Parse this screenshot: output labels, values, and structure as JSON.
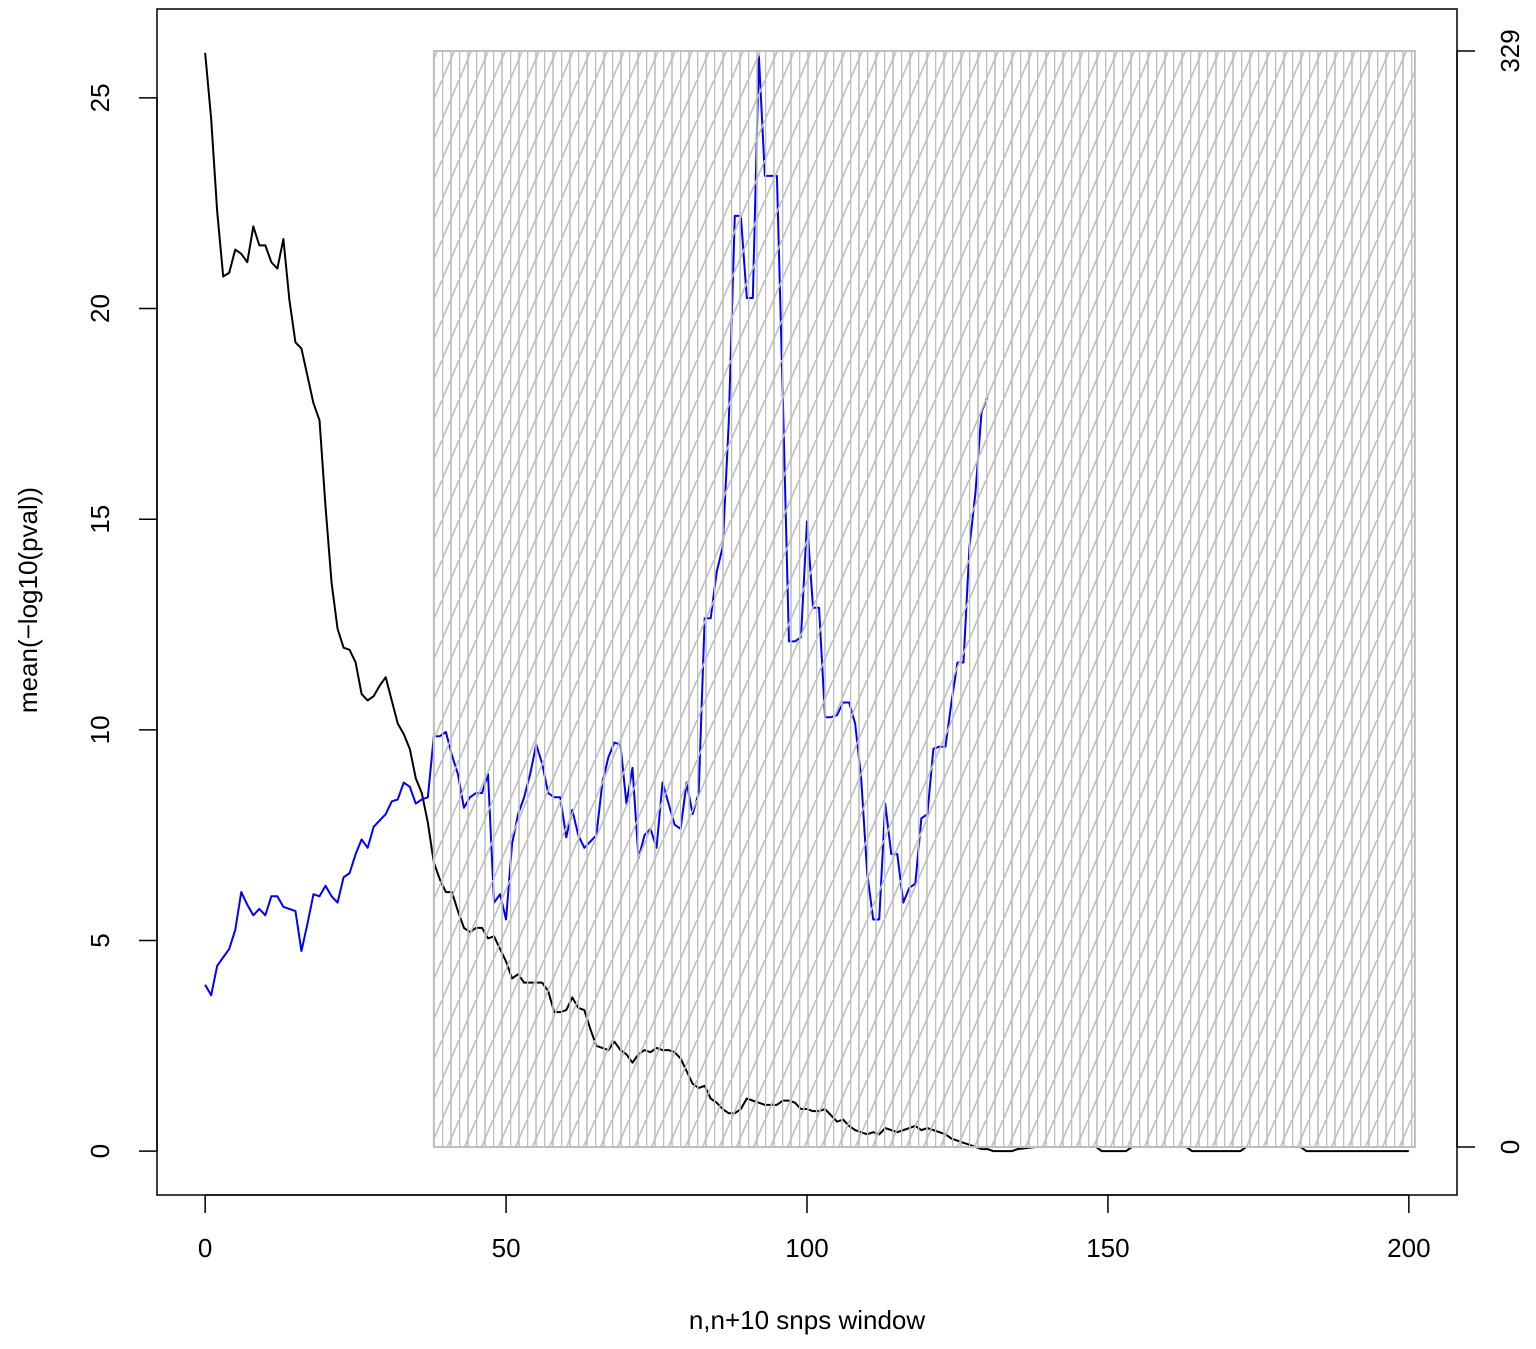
{
  "chart_data": {
    "type": "line",
    "x_label": "n,n+10 snps window",
    "y_label": "mean(−log10(pval))",
    "xlim": [
      -8,
      208
    ],
    "xticks": [
      0,
      50,
      100,
      150,
      200
    ],
    "ylim": [
      -1.04,
      27.11
    ],
    "yticks": [
      0,
      5,
      10,
      15,
      20,
      25
    ],
    "y2lim": [
      -14.4,
      341.6
    ],
    "y2ticks": [
      0,
      329
    ],
    "shaded_region": {
      "x": [
        38,
        201
      ],
      "y2": [
        0,
        329
      ],
      "color": "#bebebe",
      "axis": "y2"
    },
    "series": [
      {
        "color": "#000000",
        "x": [
          0,
          1,
          2,
          3,
          4,
          5,
          6,
          7,
          8,
          9,
          10,
          11,
          12,
          13,
          14,
          15,
          16,
          17,
          18,
          19,
          20,
          21,
          22,
          23,
          24,
          25,
          26,
          27,
          28,
          29,
          30,
          31,
          32,
          33,
          34,
          35,
          36,
          37,
          38,
          39,
          40,
          41,
          42,
          43,
          44,
          45,
          46,
          47,
          48,
          49,
          50,
          51,
          52,
          53,
          56,
          57,
          58,
          59,
          60,
          61,
          62,
          63,
          64,
          65,
          66,
          67,
          68,
          69,
          70,
          71,
          72,
          73,
          74,
          75,
          76,
          77,
          78,
          79,
          80,
          81,
          82,
          83,
          84,
          85,
          86,
          87,
          88,
          89,
          90,
          91,
          92,
          93,
          94,
          95,
          96,
          97,
          98,
          99,
          100,
          101,
          102,
          103,
          104,
          105,
          106,
          107,
          108,
          109,
          110,
          111,
          112,
          113,
          114,
          115,
          116,
          117,
          118,
          119,
          120,
          121,
          122,
          123,
          124,
          125,
          126,
          127,
          128,
          129,
          130,
          131,
          134,
          135,
          138,
          148,
          149,
          153,
          154,
          163,
          164,
          172,
          173,
          182,
          183,
          200
        ],
        "values": [
          26.07,
          24.5,
          22.3,
          20.76,
          20.85,
          21.4,
          21.3,
          21.1,
          21.95,
          21.5,
          21.5,
          21.1,
          20.95,
          21.65,
          20.2,
          19.2,
          19.05,
          18.4,
          17.75,
          17.35,
          15.3,
          13.5,
          12.4,
          11.95,
          11.9,
          11.6,
          10.85,
          10.7,
          10.8,
          11.05,
          11.25,
          10.7,
          10.15,
          9.9,
          9.55,
          8.85,
          8.5,
          7.8,
          6.85,
          6.45,
          6.15,
          6.15,
          5.7,
          5.3,
          5.2,
          5.3,
          5.3,
          5.05,
          5.1,
          4.8,
          4.5,
          4.1,
          4.2,
          4.0,
          4.0,
          3.8,
          3.3,
          3.3,
          3.35,
          3.65,
          3.4,
          3.35,
          2.9,
          2.5,
          2.45,
          2.4,
          2.6,
          2.4,
          2.3,
          2.1,
          2.3,
          2.4,
          2.35,
          2.45,
          2.4,
          2.4,
          2.35,
          2.2,
          1.9,
          1.6,
          1.5,
          1.55,
          1.25,
          1.15,
          1.0,
          0.9,
          0.9,
          1.0,
          1.25,
          1.2,
          1.15,
          1.1,
          1.1,
          1.1,
          1.2,
          1.2,
          1.15,
          1.0,
          1.0,
          0.95,
          0.95,
          1.0,
          0.85,
          0.7,
          0.75,
          0.6,
          0.5,
          0.45,
          0.4,
          0.45,
          0.4,
          0.55,
          0.5,
          0.45,
          0.5,
          0.55,
          0.6,
          0.5,
          0.55,
          0.5,
          0.45,
          0.4,
          0.3,
          0.25,
          0.2,
          0.15,
          0.1,
          0.05,
          0.05,
          0,
          0,
          0.05,
          0.1,
          0.1,
          0,
          0,
          0.1,
          0.1,
          0,
          0,
          0.1,
          0.1,
          0,
          0
        ]
      },
      {
        "color": "#0000ff",
        "x": [
          0,
          1,
          2,
          3,
          4,
          5,
          6,
          7,
          8,
          9,
          10,
          11,
          12,
          13,
          14,
          15,
          16,
          17,
          18,
          19,
          20,
          21,
          22,
          23,
          24,
          25,
          26,
          27,
          28,
          29,
          30,
          31,
          32,
          33,
          34,
          35,
          36,
          37,
          38,
          39,
          40,
          41,
          42,
          43,
          44,
          45,
          46,
          47,
          48,
          49,
          50,
          51,
          52,
          53,
          54,
          55,
          56,
          57,
          58,
          59,
          60,
          61,
          62,
          63,
          64,
          65,
          66,
          67,
          68,
          69,
          70,
          71,
          72,
          73,
          74,
          75,
          76,
          77,
          78,
          79,
          80,
          81,
          82,
          83,
          84,
          85,
          86,
          87,
          88,
          89,
          90,
          91,
          92,
          93,
          94,
          95,
          96,
          97,
          98,
          99,
          100,
          101,
          102,
          103,
          104,
          105,
          106,
          107,
          108,
          109,
          110,
          111,
          112,
          113,
          114,
          115,
          116,
          117,
          118,
          119,
          120,
          121,
          122,
          123,
          124,
          125,
          126,
          127,
          128,
          129,
          130
        ],
        "values": [
          3.95,
          3.7,
          4.4,
          4.6,
          4.8,
          5.25,
          6.15,
          5.85,
          5.6,
          5.75,
          5.6,
          6.05,
          6.05,
          5.8,
          5.75,
          5.7,
          4.75,
          5.4,
          6.1,
          6.05,
          6.3,
          6.05,
          5.9,
          6.5,
          6.6,
          7.05,
          7.4,
          7.2,
          7.7,
          7.85,
          8.0,
          8.3,
          8.35,
          8.75,
          8.65,
          8.25,
          8.35,
          8.4,
          9.85,
          9.85,
          9.95,
          9.4,
          8.95,
          8.15,
          8.4,
          8.5,
          8.5,
          8.95,
          5.9,
          6.1,
          5.5,
          7.3,
          8.0,
          8.4,
          8.95,
          9.65,
          9.2,
          8.5,
          8.4,
          8.4,
          7.45,
          8.1,
          7.5,
          7.2,
          7.35,
          7.5,
          8.75,
          9.35,
          9.7,
          9.65,
          8.25,
          9.1,
          6.95,
          7.5,
          7.65,
          7.2,
          8.75,
          8.25,
          7.75,
          7.65,
          8.75,
          8.0,
          8.5,
          12.65,
          12.65,
          13.75,
          14.35,
          17.3,
          22.2,
          22.2,
          20.25,
          20.25,
          26.0,
          23.15,
          23.15,
          23.15,
          17.8,
          12.1,
          12.1,
          12.2,
          14.95,
          12.9,
          12.9,
          10.3,
          10.3,
          10.35,
          10.65,
          10.65,
          10.15,
          8.85,
          6.6,
          5.5,
          5.5,
          8.25,
          7.05,
          7.05,
          5.9,
          6.25,
          6.35,
          7.9,
          8.0,
          9.55,
          9.6,
          9.6,
          10.65,
          11.6,
          11.6,
          14.35,
          15.65,
          17.55,
          17.9
        ]
      }
    ]
  }
}
